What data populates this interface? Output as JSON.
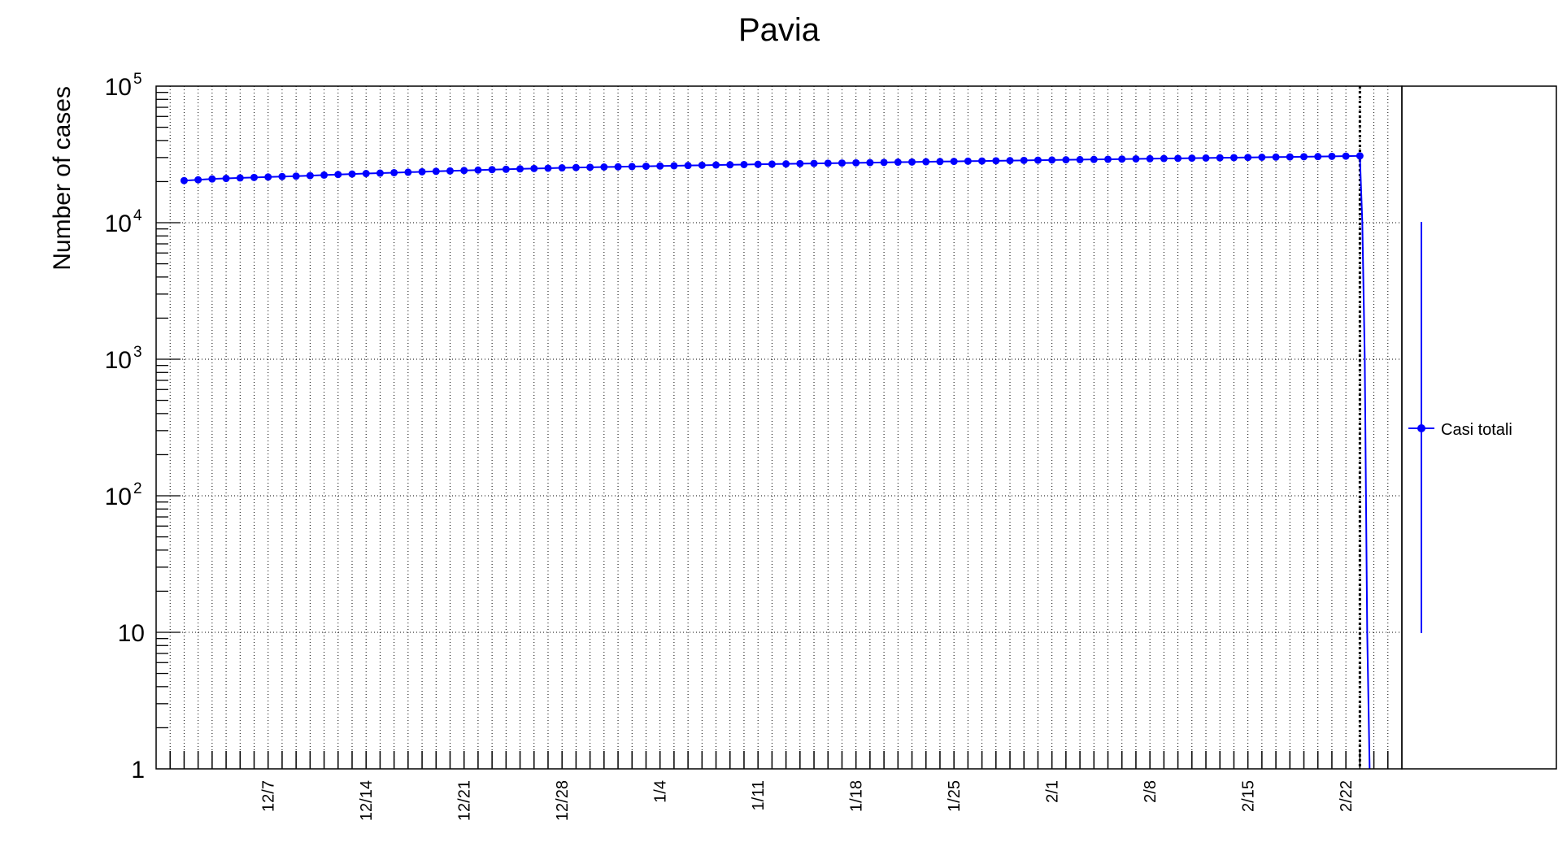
{
  "chart_data": {
    "type": "line",
    "title": "Pavia",
    "xlabel": "",
    "ylabel": "Number of cases",
    "y_scale": "log",
    "ylim": [
      1,
      100000
    ],
    "xlim": [
      "2020-11-29",
      "2021-02-26"
    ],
    "grid": true,
    "legend_position": "right",
    "x_tick_labels": [
      "12/7",
      "12/14",
      "12/21",
      "12/28",
      "1/4",
      "1/11",
      "1/18",
      "1/25",
      "2/1",
      "2/8",
      "2/15",
      "2/22"
    ],
    "y_tick_labels": [
      {
        "base": "10",
        "exp": "5"
      },
      {
        "base": "10",
        "exp": "4"
      },
      {
        "base": "10",
        "exp": "3"
      },
      {
        "base": "10",
        "exp": "2"
      },
      {
        "base": "10",
        "exp": ""
      },
      {
        "base": "1",
        "exp": ""
      }
    ],
    "series": [
      {
        "name": "Casi totali",
        "color": "#0000ff",
        "start_date": "2020-12-01",
        "values": [
          20330,
          20620,
          20910,
          21100,
          21280,
          21450,
          21610,
          21770,
          21930,
          22120,
          22320,
          22530,
          22720,
          22900,
          23070,
          23250,
          23420,
          23600,
          23780,
          23950,
          24120,
          24290,
          24460,
          24620,
          24780,
          24930,
          25070,
          25210,
          25340,
          25460,
          25570,
          25670,
          25780,
          25890,
          26000,
          26120,
          26230,
          26340,
          26450,
          26550,
          26660,
          26760,
          26860,
          26960,
          27060,
          27160,
          27250,
          27350,
          27450,
          27540,
          27640,
          27740,
          27830,
          27930,
          28030,
          28120,
          28220,
          28310,
          28410,
          28500,
          28600,
          28690,
          28780,
          28880,
          28970,
          29060,
          29150,
          29240,
          29330,
          29420,
          29510,
          29600,
          29690,
          29780,
          29870,
          29960,
          30050,
          30140,
          30230,
          30320,
          30410,
          30500,
          30620,
          30740,
          30870
        ]
      }
    ],
    "vertical_marker": "2021-02-23"
  }
}
